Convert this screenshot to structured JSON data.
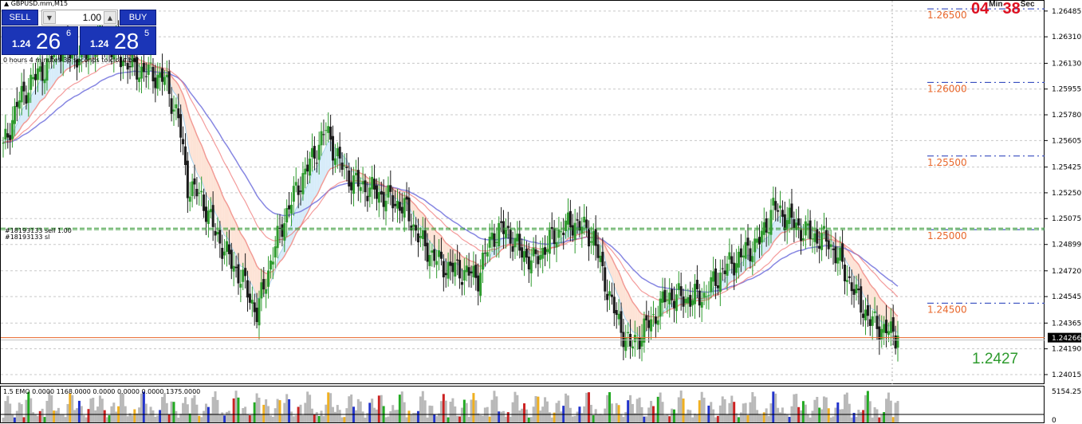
{
  "window": {
    "symbol_title": "GBPUSD.mm,M15"
  },
  "trade_panel": {
    "sell_label": "SELL",
    "buy_label": "BUY",
    "lot_value": "1.00",
    "sell_price": {
      "prefix": "1.24",
      "big": "26",
      "point": "6"
    },
    "buy_price": {
      "prefix": "1.24",
      "big": "28",
      "point": "5"
    },
    "bar_close_text": "0 hours 4 minutes 38 seconds to close bar"
  },
  "timer": {
    "minutes": "04",
    "min_label": "Min",
    "seconds": "38",
    "sec_label": "Sec"
  },
  "current_price_big": "1.2427",
  "orders": {
    "line1": "#18193133 sell 1.00",
    "line2": "#18193133 sl"
  },
  "indicator": {
    "title": "1.5 EMO 0.0000 1168.0000 0.0000 0.0000 0.0000 1375.0000",
    "axis_top": "5154.25",
    "axis_bottom": "0"
  },
  "colors": {
    "bull": "#2e9b2e",
    "bear": "#1a1a1a",
    "ema_fast": "#f29b95",
    "ema_slow": "#7272dd",
    "cloud_bear": "#fde3d6",
    "cloud_bull": "#d7ecf9",
    "level_text": "#e8662a",
    "order_line": "#339933",
    "bid_line": "#e8662a",
    "panel_blue": "#1b35b7"
  },
  "chart_data": {
    "type": "candlestick",
    "y_axis": {
      "min": 1.2395,
      "max": 1.2656,
      "ticks": [
        "1.26485",
        "1.26310",
        "1.26130",
        "1.25955",
        "1.25780",
        "1.25605",
        "1.25425",
        "1.25250",
        "1.25075",
        "1.24899",
        "1.24720",
        "1.24545",
        "1.24365",
        "1.24190",
        "1.24015"
      ]
    },
    "current_price_label": "1.24266",
    "levels": [
      {
        "label": "1.26500",
        "value": 1.265
      },
      {
        "label": "1.26000",
        "value": 1.26
      },
      {
        "label": "1.25500",
        "value": 1.255
      },
      {
        "label": "1.25000",
        "value": 1.25
      },
      {
        "label": "1.24500",
        "value": 1.245
      }
    ],
    "order_level": 1.2501,
    "order_level2": 1.25,
    "current_price": 1.24266,
    "anchors": [
      [
        0,
        1.2555
      ],
      [
        6,
        1.2585
      ],
      [
        12,
        1.26
      ],
      [
        18,
        1.261
      ],
      [
        24,
        1.2625
      ],
      [
        30,
        1.2618
      ],
      [
        36,
        1.262
      ],
      [
        42,
        1.263
      ],
      [
        48,
        1.2622
      ],
      [
        56,
        1.261
      ],
      [
        64,
        1.2606
      ],
      [
        70,
        1.2602
      ],
      [
        76,
        1.2575
      ],
      [
        80,
        1.253
      ],
      [
        86,
        1.2522
      ],
      [
        92,
        1.2498
      ],
      [
        98,
        1.248
      ],
      [
        104,
        1.2465
      ],
      [
        110,
        1.2443
      ],
      [
        116,
        1.2478
      ],
      [
        122,
        1.2508
      ],
      [
        128,
        1.253
      ],
      [
        134,
        1.2548
      ],
      [
        140,
        1.2568
      ],
      [
        146,
        1.2545
      ],
      [
        152,
        1.2532
      ],
      [
        158,
        1.2528
      ],
      [
        166,
        1.2522
      ],
      [
        174,
        1.2515
      ],
      [
        182,
        1.249
      ],
      [
        190,
        1.2476
      ],
      [
        198,
        1.2472
      ],
      [
        206,
        1.2468
      ],
      [
        212,
        1.2496
      ],
      [
        218,
        1.25
      ],
      [
        224,
        1.2486
      ],
      [
        230,
        1.2478
      ],
      [
        236,
        1.249
      ],
      [
        242,
        1.25
      ],
      [
        248,
        1.2505
      ],
      [
        256,
        1.2495
      ],
      [
        260,
        1.247
      ],
      [
        266,
        1.244
      ],
      [
        272,
        1.242
      ],
      [
        276,
        1.2428
      ],
      [
        282,
        1.244
      ],
      [
        288,
        1.2455
      ],
      [
        296,
        1.2453
      ],
      [
        304,
        1.2455
      ],
      [
        312,
        1.2472
      ],
      [
        320,
        1.2482
      ],
      [
        328,
        1.2492
      ],
      [
        334,
        1.2515
      ],
      [
        340,
        1.2508
      ],
      [
        346,
        1.25
      ],
      [
        352,
        1.2495
      ],
      [
        358,
        1.2492
      ],
      [
        364,
        1.2475
      ],
      [
        370,
        1.2455
      ],
      [
        376,
        1.2438
      ],
      [
        382,
        1.2432
      ],
      [
        388,
        1.2428
      ]
    ],
    "volume_max": 5154.25
  }
}
